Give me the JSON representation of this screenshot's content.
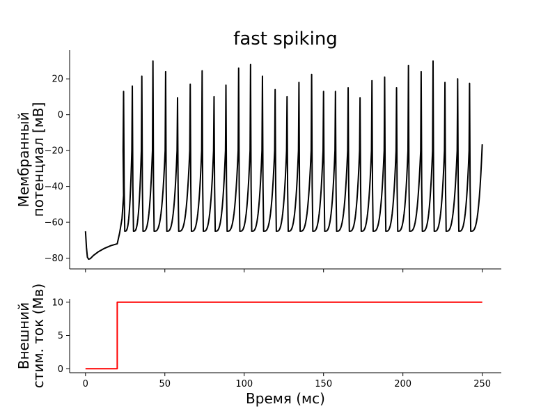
{
  "chart_data": [
    {
      "type": "line",
      "title": "fast spiking",
      "ylabel": [
        "Мембранный",
        "потенциал [мВ]"
      ],
      "xlabel": "",
      "xlim": [
        -10,
        262
      ],
      "ylim": [
        -86,
        36
      ],
      "yticks": [
        -80,
        -60,
        -40,
        -20,
        0,
        20
      ],
      "xticks": [
        0,
        50,
        100,
        150,
        200,
        250
      ],
      "show_xtick_labels": false,
      "grid": false,
      "series": [
        {
          "color": "#000000",
          "baseline": -65,
          "initial": {
            "x": [
              0,
              0.6,
              1.2,
              2,
              3,
              5,
              8,
              12,
              16,
              20,
              21.5,
              23,
              24
            ],
            "y": [
              -65,
              -74,
              -79.5,
              -80.6,
              -80.3,
              -78.5,
              -76.5,
              -74.5,
              -73,
              -72,
              -66,
              -58,
              -45
            ]
          },
          "spikes": [
            {
              "t": 24.0,
              "peak": 13
            },
            {
              "t": 29.5,
              "peak": 16
            },
            {
              "t": 35.5,
              "peak": 21.5
            },
            {
              "t": 42.5,
              "peak": 30
            },
            {
              "t": 50.5,
              "peak": 24
            },
            {
              "t": 58.0,
              "peak": 9.5
            },
            {
              "t": 66.0,
              "peak": 17
            },
            {
              "t": 73.5,
              "peak": 24.5
            },
            {
              "t": 81.0,
              "peak": 10
            },
            {
              "t": 88.5,
              "peak": 16.5
            },
            {
              "t": 96.5,
              "peak": 26
            },
            {
              "t": 104.0,
              "peak": 28
            },
            {
              "t": 111.5,
              "peak": 21.5
            },
            {
              "t": 119.5,
              "peak": 14
            },
            {
              "t": 127.0,
              "peak": 10
            },
            {
              "t": 134.5,
              "peak": 18
            },
            {
              "t": 142.5,
              "peak": 22.5
            },
            {
              "t": 150.0,
              "peak": 13
            },
            {
              "t": 157.5,
              "peak": 13
            },
            {
              "t": 165.5,
              "peak": 15
            },
            {
              "t": 173.0,
              "peak": 9.5
            },
            {
              "t": 180.5,
              "peak": 19
            },
            {
              "t": 188.5,
              "peak": 21
            },
            {
              "t": 196.0,
              "peak": 15
            },
            {
              "t": 203.5,
              "peak": 27.5
            },
            {
              "t": 211.5,
              "peak": 24
            },
            {
              "t": 219.0,
              "peak": 30
            },
            {
              "t": 226.5,
              "peak": 18
            },
            {
              "t": 234.5,
              "peak": 20
            },
            {
              "t": 242.0,
              "peak": 17.5
            }
          ],
          "end": {
            "x": 250,
            "y": -16.5
          }
        }
      ]
    },
    {
      "type": "line",
      "title": "",
      "ylabel": [
        "Внешний",
        "стим. ток (Мв)"
      ],
      "xlabel": "Время (мс)",
      "xlim": [
        -10,
        262
      ],
      "ylim": [
        -0.6,
        10.5
      ],
      "yticks": [
        0,
        5,
        10
      ],
      "xticks": [
        0,
        50,
        100,
        150,
        200,
        250
      ],
      "show_xtick_labels": true,
      "grid": false,
      "series": [
        {
          "color": "#ff0000",
          "x": [
            0,
            20,
            20,
            250
          ],
          "y": [
            0,
            0,
            10,
            10
          ]
        }
      ]
    }
  ]
}
